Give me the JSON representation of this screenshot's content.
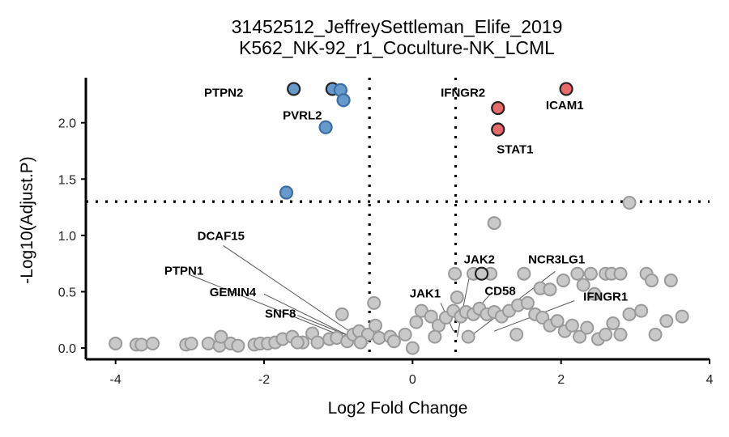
{
  "chart_data": {
    "type": "scatter",
    "title_line1": "31452512_JeffreySettleman_Elife_2019",
    "title_line2": "K562_NK-92_r1_Coculture-NK_LCML",
    "xlabel": "Log2 Fold Change",
    "ylabel": "-Log10(Adjust.P)",
    "xlim": [
      -4.4,
      4.0
    ],
    "ylim": [
      -0.1,
      2.4
    ],
    "x_ticks": [
      -4,
      -2,
      0,
      2,
      4
    ],
    "x_tick_labels": [
      "-4",
      "-2",
      "0",
      "2",
      "4"
    ],
    "y_ticks": [
      0.0,
      0.5,
      1.0,
      1.5,
      2.0
    ],
    "y_tick_labels": [
      "0.0",
      "0.5",
      "1.0",
      "1.5",
      "2.0"
    ],
    "thresholds": {
      "x": [
        -0.58,
        0.58
      ],
      "y": 1.3
    },
    "colors": {
      "down": "#6699cc",
      "up": "#e86a6a",
      "ns": "#c9c9c9",
      "ns_edge": "#9a9a9a",
      "highlight_edge": "#222222"
    },
    "down_points": [
      {
        "x": -1.6,
        "y": 2.3,
        "highlight": true
      },
      {
        "x": -1.08,
        "y": 2.3,
        "highlight": true
      },
      {
        "x": -0.97,
        "y": 2.29,
        "highlight": false
      },
      {
        "x": -0.93,
        "y": 2.2,
        "highlight": false
      },
      {
        "x": -1.17,
        "y": 1.96,
        "highlight": false
      },
      {
        "x": -1.7,
        "y": 1.38,
        "highlight": false
      }
    ],
    "up_points": [
      {
        "x": 2.07,
        "y": 2.3,
        "highlight": true
      },
      {
        "x": 1.15,
        "y": 2.13,
        "highlight": true
      },
      {
        "x": 1.15,
        "y": 1.94,
        "highlight": true
      }
    ],
    "ns_points": [
      [
        -4.0,
        0.04
      ],
      [
        -3.72,
        0.03
      ],
      [
        -3.65,
        0.03
      ],
      [
        -3.5,
        0.04
      ],
      [
        -3.05,
        0.03
      ],
      [
        -2.98,
        0.04
      ],
      [
        -2.75,
        0.04
      ],
      [
        -2.6,
        0.02
      ],
      [
        -2.45,
        0.04
      ],
      [
        -2.58,
        0.1
      ],
      [
        -2.35,
        0.02
      ],
      [
        -2.13,
        0.03
      ],
      [
        -2.05,
        0.04
      ],
      [
        -1.95,
        0.04
      ],
      [
        -1.85,
        0.05
      ],
      [
        -1.75,
        0.08
      ],
      [
        -1.62,
        0.1
      ],
      [
        -1.48,
        0.05
      ],
      [
        -1.35,
        0.13
      ],
      [
        -1.28,
        0.05
      ],
      [
        -1.12,
        0.08
      ],
      [
        -1.02,
        0.09
      ],
      [
        -0.95,
        0.3
      ],
      [
        -0.88,
        0.06
      ],
      [
        -0.8,
        0.12
      ],
      [
        -0.72,
        0.15
      ],
      [
        -0.6,
        0.12
      ],
      [
        -0.52,
        0.4
      ],
      [
        -0.5,
        0.2
      ],
      [
        -0.45,
        0.09
      ],
      [
        -0.3,
        0.1
      ],
      [
        -0.1,
        0.12
      ],
      [
        0.0,
        0.0
      ],
      [
        0.05,
        0.23
      ],
      [
        0.12,
        0.33
      ],
      [
        0.25,
        0.28
      ],
      [
        0.35,
        0.2
      ],
      [
        0.45,
        0.27
      ],
      [
        0.55,
        0.33
      ],
      [
        0.6,
        0.45
      ],
      [
        0.65,
        0.28
      ],
      [
        0.72,
        0.32
      ],
      [
        0.82,
        0.3
      ],
      [
        0.9,
        0.35
      ],
      [
        1.0,
        0.3
      ],
      [
        1.1,
        0.32
      ],
      [
        1.2,
        0.28
      ],
      [
        1.3,
        0.33
      ],
      [
        1.42,
        0.38
      ],
      [
        1.55,
        0.4
      ],
      [
        1.65,
        0.3
      ],
      [
        1.75,
        0.27
      ],
      [
        1.85,
        0.2
      ],
      [
        1.95,
        0.24
      ],
      [
        2.05,
        0.15
      ],
      [
        2.15,
        0.2
      ],
      [
        2.25,
        0.1
      ],
      [
        2.35,
        0.18
      ],
      [
        2.5,
        0.08
      ],
      [
        2.6,
        0.12
      ],
      [
        2.7,
        0.22
      ],
      [
        2.8,
        0.12
      ],
      [
        2.92,
        0.3
      ],
      [
        3.08,
        0.33
      ],
      [
        3.27,
        0.12
      ],
      [
        3.42,
        0.24
      ],
      [
        3.63,
        0.28
      ],
      [
        0.57,
        0.66
      ],
      [
        0.82,
        0.66
      ],
      [
        1.05,
        0.66
      ],
      [
        1.5,
        0.66
      ],
      [
        1.72,
        0.53
      ],
      [
        1.85,
        0.52
      ],
      [
        2.03,
        0.6
      ],
      [
        2.22,
        0.66
      ],
      [
        2.4,
        0.66
      ],
      [
        2.6,
        0.66
      ],
      [
        2.68,
        0.66
      ],
      [
        2.8,
        0.66
      ],
      [
        3.15,
        0.66
      ],
      [
        3.22,
        0.6
      ],
      [
        3.48,
        0.6
      ],
      [
        2.3,
        0.56
      ],
      [
        2.45,
        0.48
      ],
      [
        1.1,
        1.11
      ],
      [
        2.92,
        1.29
      ],
      [
        -0.25,
        0.06
      ],
      [
        0.3,
        0.1
      ],
      [
        0.75,
        0.1
      ],
      [
        1.4,
        0.12
      ],
      [
        -0.7,
        0.05
      ],
      [
        -1.55,
        0.05
      ]
    ],
    "black_ring_ns": [
      {
        "x": 0.93,
        "y": 0.66
      }
    ],
    "gene_labels": [
      {
        "text": "PTPN2",
        "x": -2.28,
        "y": 2.23,
        "anchor": "end"
      },
      {
        "text": "PVRL2",
        "x": -1.22,
        "y": 2.03,
        "anchor": "end"
      },
      {
        "text": "IFNGR2",
        "x": 0.98,
        "y": 2.23,
        "anchor": "end"
      },
      {
        "text": "ICAM1",
        "x": 2.05,
        "y": 2.12,
        "anchor": "middle"
      },
      {
        "text": "STAT1",
        "x": 1.38,
        "y": 1.73,
        "anchor": "middle"
      },
      {
        "text": "DCAF15",
        "x": -2.58,
        "y": 0.96,
        "anchor": "middle"
      },
      {
        "text": "PTPN1",
        "x": -3.08,
        "y": 0.65,
        "anchor": "middle"
      },
      {
        "text": "GEMIN4",
        "x": -2.42,
        "y": 0.46,
        "anchor": "middle"
      },
      {
        "text": "SNF8",
        "x": -1.78,
        "y": 0.27,
        "anchor": "middle"
      },
      {
        "text": "JAK2",
        "x": 0.9,
        "y": 0.75,
        "anchor": "middle"
      },
      {
        "text": "NCR3LG1",
        "x": 1.94,
        "y": 0.75,
        "anchor": "middle"
      },
      {
        "text": "JAK1",
        "x": 0.17,
        "y": 0.45,
        "anchor": "middle"
      },
      {
        "text": "CD58",
        "x": 1.18,
        "y": 0.47,
        "anchor": "middle"
      },
      {
        "text": "IFNGR1",
        "x": 2.6,
        "y": 0.42,
        "anchor": "middle"
      }
    ],
    "leader_lines": [
      {
        "x1": -2.55,
        "y1": 0.91,
        "x2": -0.65,
        "y2": 0.06
      },
      {
        "x1": -3.0,
        "y1": 0.65,
        "x2": -0.7,
        "y2": 0.04
      },
      {
        "x1": -2.0,
        "y1": 0.48,
        "x2": -0.68,
        "y2": 0.05
      },
      {
        "x1": -1.55,
        "y1": 0.29,
        "x2": -0.6,
        "y2": 0.04
      },
      {
        "x1": 0.78,
        "y1": 0.68,
        "x2": 0.6,
        "y2": 0.1
      },
      {
        "x1": 1.92,
        "y1": 0.68,
        "x2": 0.83,
        "y2": 0.13
      },
      {
        "x1": 0.38,
        "y1": 0.4,
        "x2": 0.55,
        "y2": 0.15
      },
      {
        "x1": 1.05,
        "y1": 0.48,
        "x2": 0.9,
        "y2": 0.37
      },
      {
        "x1": 2.18,
        "y1": 0.42,
        "x2": 1.1,
        "y2": 0.15
      }
    ]
  }
}
